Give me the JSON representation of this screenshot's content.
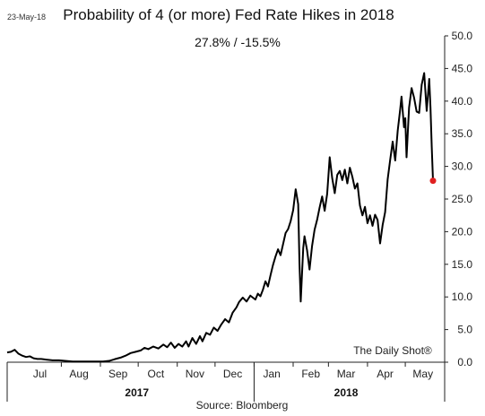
{
  "date_stamp": "23-May-18",
  "source": "Source: Bloomberg",
  "watermark": "The Daily Shot®",
  "chart_data": {
    "type": "line",
    "title": "Probability of 4 (or more) Fed Rate Hikes in 2018",
    "subtitle": "27.8%  /  -15.5%",
    "xlabel": "",
    "ylabel": "",
    "ylim": [
      0,
      50
    ],
    "yticks": [
      "0.0",
      "5.0",
      "10.0",
      "15.0",
      "20.0",
      "25.0",
      "30.0",
      "35.0",
      "40.0",
      "45.0",
      "50.0"
    ],
    "grid": false,
    "x_range": [
      "2017-06-19",
      "2018-05-23"
    ],
    "month_labels": [
      {
        "label": "Jul",
        "date": "2017-07-15"
      },
      {
        "label": "Aug",
        "date": "2017-08-15"
      },
      {
        "label": "Sep",
        "date": "2017-09-15"
      },
      {
        "label": "Oct",
        "date": "2017-10-15"
      },
      {
        "label": "Nov",
        "date": "2017-11-15"
      },
      {
        "label": "Dec",
        "date": "2017-12-15"
      },
      {
        "label": "Jan",
        "date": "2018-01-15"
      },
      {
        "label": "Feb",
        "date": "2018-02-15"
      },
      {
        "label": "Mar",
        "date": "2018-03-15"
      },
      {
        "label": "Apr",
        "date": "2018-04-15"
      },
      {
        "label": "May",
        "date": "2018-05-15"
      }
    ],
    "month_boundaries": [
      "2017-08-01",
      "2017-09-01",
      "2017-10-01",
      "2017-11-01",
      "2017-12-01",
      "2018-01-01",
      "2018-02-01",
      "2018-03-01",
      "2018-04-01",
      "2018-05-01"
    ],
    "year_labels": [
      {
        "label": "2017",
        "date": "2017-09-30"
      },
      {
        "label": "2018",
        "date": "2018-03-15"
      }
    ],
    "year_boundary": "2018-01-01",
    "last_point": {
      "date": "2018-05-23",
      "value": 27.8,
      "color": "#e02020"
    },
    "line_color": "#000000",
    "series": [
      {
        "points": [
          [
            "2017-06-19",
            1.5
          ],
          [
            "2017-06-22",
            1.6
          ],
          [
            "2017-06-25",
            1.9
          ],
          [
            "2017-06-28",
            1.3
          ],
          [
            "2017-07-01",
            1.0
          ],
          [
            "2017-07-04",
            0.8
          ],
          [
            "2017-07-07",
            0.9
          ],
          [
            "2017-07-10",
            0.6
          ],
          [
            "2017-07-13",
            0.5
          ],
          [
            "2017-07-16",
            0.5
          ],
          [
            "2017-07-20",
            0.4
          ],
          [
            "2017-07-25",
            0.3
          ],
          [
            "2017-07-30",
            0.3
          ],
          [
            "2017-08-04",
            0.2
          ],
          [
            "2017-08-10",
            0.1
          ],
          [
            "2017-08-16",
            0.1
          ],
          [
            "2017-08-22",
            0.1
          ],
          [
            "2017-08-28",
            0.1
          ],
          [
            "2017-09-03",
            0.1
          ],
          [
            "2017-09-08",
            0.2
          ],
          [
            "2017-09-13",
            0.5
          ],
          [
            "2017-09-17",
            0.7
          ],
          [
            "2017-09-21",
            1.0
          ],
          [
            "2017-09-25",
            1.4
          ],
          [
            "2017-09-29",
            1.6
          ],
          [
            "2017-10-03",
            1.8
          ],
          [
            "2017-10-06",
            2.2
          ],
          [
            "2017-10-09",
            2.0
          ],
          [
            "2017-10-13",
            2.4
          ],
          [
            "2017-10-17",
            2.1
          ],
          [
            "2017-10-21",
            2.7
          ],
          [
            "2017-10-24",
            2.3
          ],
          [
            "2017-10-27",
            3.0
          ],
          [
            "2017-10-30",
            2.2
          ],
          [
            "2017-11-02",
            2.8
          ],
          [
            "2017-11-05",
            2.4
          ],
          [
            "2017-11-08",
            3.2
          ],
          [
            "2017-11-10",
            2.4
          ],
          [
            "2017-11-13",
            3.7
          ],
          [
            "2017-11-16",
            2.8
          ],
          [
            "2017-11-19",
            4.0
          ],
          [
            "2017-11-21",
            3.2
          ],
          [
            "2017-11-24",
            4.5
          ],
          [
            "2017-11-27",
            4.2
          ],
          [
            "2017-11-30",
            5.3
          ],
          [
            "2017-12-03",
            4.8
          ],
          [
            "2017-12-06",
            5.8
          ],
          [
            "2017-12-09",
            6.6
          ],
          [
            "2017-12-12",
            6.1
          ],
          [
            "2017-12-15",
            7.6
          ],
          [
            "2017-12-18",
            8.4
          ],
          [
            "2017-12-20",
            9.2
          ],
          [
            "2017-12-23",
            9.9
          ],
          [
            "2017-12-26",
            9.3
          ],
          [
            "2017-12-29",
            10.2
          ],
          [
            "2018-01-02",
            9.6
          ],
          [
            "2018-01-04",
            10.5
          ],
          [
            "2018-01-06",
            10.1
          ],
          [
            "2018-01-08",
            11.1
          ],
          [
            "2018-01-10",
            12.4
          ],
          [
            "2018-01-12",
            11.6
          ],
          [
            "2018-01-14",
            13.3
          ],
          [
            "2018-01-16",
            14.9
          ],
          [
            "2018-01-18",
            16.2
          ],
          [
            "2018-01-20",
            17.3
          ],
          [
            "2018-01-22",
            16.4
          ],
          [
            "2018-01-24",
            18.1
          ],
          [
            "2018-01-26",
            19.8
          ],
          [
            "2018-01-28",
            20.4
          ],
          [
            "2018-01-30",
            21.6
          ],
          [
            "2018-02-01",
            23.3
          ],
          [
            "2018-02-03",
            26.5
          ],
          [
            "2018-02-05",
            24.2
          ],
          [
            "2018-02-06",
            15.2
          ],
          [
            "2018-02-07",
            9.3
          ],
          [
            "2018-02-09",
            17.5
          ],
          [
            "2018-02-10",
            19.3
          ],
          [
            "2018-02-12",
            17.2
          ],
          [
            "2018-02-14",
            14.2
          ],
          [
            "2018-02-16",
            17.8
          ],
          [
            "2018-02-18",
            20.3
          ],
          [
            "2018-02-20",
            21.8
          ],
          [
            "2018-02-22",
            23.7
          ],
          [
            "2018-02-24",
            25.4
          ],
          [
            "2018-02-26",
            23.2
          ],
          [
            "2018-02-28",
            25.8
          ],
          [
            "2018-03-01",
            28.6
          ],
          [
            "2018-03-02",
            31.4
          ],
          [
            "2018-03-04",
            28.2
          ],
          [
            "2018-03-06",
            25.9
          ],
          [
            "2018-03-08",
            28.7
          ],
          [
            "2018-03-10",
            29.3
          ],
          [
            "2018-03-12",
            27.9
          ],
          [
            "2018-03-14",
            29.5
          ],
          [
            "2018-03-16",
            27.4
          ],
          [
            "2018-03-18",
            29.8
          ],
          [
            "2018-03-20",
            28.4
          ],
          [
            "2018-03-22",
            26.6
          ],
          [
            "2018-03-24",
            27.4
          ],
          [
            "2018-03-26",
            24.0
          ],
          [
            "2018-03-28",
            22.5
          ],
          [
            "2018-03-30",
            23.8
          ],
          [
            "2018-04-01",
            21.3
          ],
          [
            "2018-04-03",
            22.5
          ],
          [
            "2018-04-05",
            20.9
          ],
          [
            "2018-04-07",
            22.6
          ],
          [
            "2018-04-09",
            21.8
          ],
          [
            "2018-04-11",
            18.2
          ],
          [
            "2018-04-13",
            21.0
          ],
          [
            "2018-04-15",
            23.0
          ],
          [
            "2018-04-17",
            28.0
          ],
          [
            "2018-04-19",
            31.0
          ],
          [
            "2018-04-21",
            33.8
          ],
          [
            "2018-04-23",
            30.9
          ],
          [
            "2018-04-25",
            35.5
          ],
          [
            "2018-04-27",
            38.8
          ],
          [
            "2018-04-28",
            40.7
          ],
          [
            "2018-04-30",
            36.0
          ],
          [
            "2018-05-01",
            37.4
          ],
          [
            "2018-05-02",
            31.4
          ],
          [
            "2018-05-04",
            39.0
          ],
          [
            "2018-05-06",
            42.0
          ],
          [
            "2018-05-08",
            40.5
          ],
          [
            "2018-05-10",
            38.4
          ],
          [
            "2018-05-12",
            38.2
          ],
          [
            "2018-05-14",
            42.5
          ],
          [
            "2018-05-16",
            44.3
          ],
          [
            "2018-05-18",
            38.5
          ],
          [
            "2018-05-20",
            43.4
          ],
          [
            "2018-05-21",
            39.0
          ],
          [
            "2018-05-22",
            33.0
          ],
          [
            "2018-05-23",
            27.8
          ]
        ]
      }
    ]
  }
}
